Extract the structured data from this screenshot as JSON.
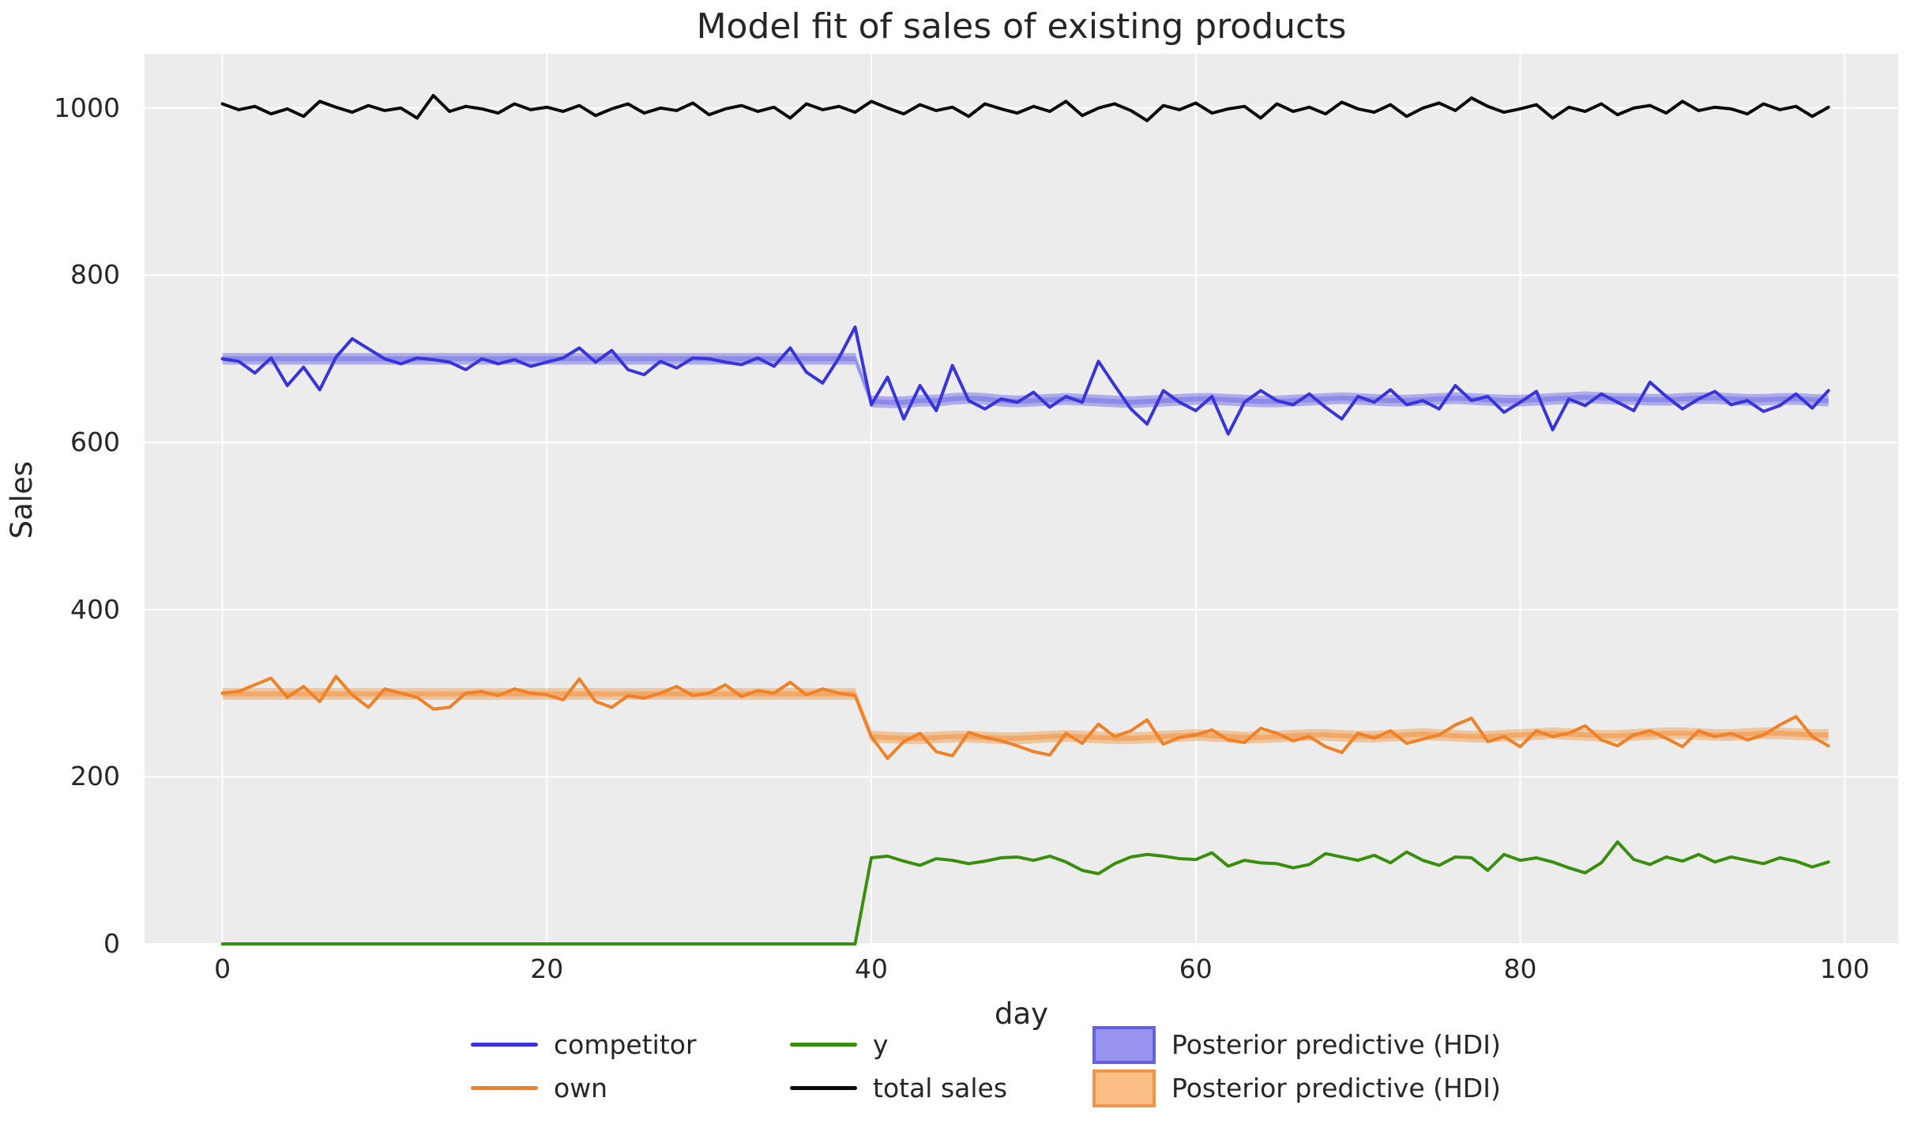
{
  "chart_data": {
    "type": "line",
    "title": "Model fit of sales of existing products",
    "xlabel": "day",
    "ylabel": "Sales",
    "xlim": [
      -4.8,
      103.3
    ],
    "ylim": [
      0,
      1065
    ],
    "xticks": [
      0,
      20,
      40,
      60,
      80,
      100
    ],
    "yticks": [
      0,
      200,
      400,
      600,
      800,
      1000
    ],
    "grid": true,
    "legend_position": "below",
    "axes_background": "#ececec",
    "grid_color": "#ffffff",
    "x": [
      0,
      1,
      2,
      3,
      4,
      5,
      6,
      7,
      8,
      9,
      10,
      11,
      12,
      13,
      14,
      15,
      16,
      17,
      18,
      19,
      20,
      21,
      22,
      23,
      24,
      25,
      26,
      27,
      28,
      29,
      30,
      31,
      32,
      33,
      34,
      35,
      36,
      37,
      38,
      39,
      40,
      41,
      42,
      43,
      44,
      45,
      46,
      47,
      48,
      49,
      50,
      51,
      52,
      53,
      54,
      55,
      56,
      57,
      58,
      59,
      60,
      61,
      62,
      63,
      64,
      65,
      66,
      67,
      68,
      69,
      70,
      71,
      72,
      73,
      74,
      75,
      76,
      77,
      78,
      79,
      80,
      81,
      82,
      83,
      84,
      85,
      86,
      87,
      88,
      89,
      90,
      91,
      92,
      93,
      94,
      95,
      96,
      97,
      98,
      99
    ],
    "series": [
      {
        "name": "competitor",
        "color": "#3734db",
        "values": [
          700,
          697,
          683,
          701,
          668,
          690,
          663,
          702,
          724,
          712,
          700,
          694,
          701,
          699,
          696,
          687,
          700,
          694,
          699,
          691,
          696,
          701,
          713,
          696,
          710,
          687,
          681,
          697,
          689,
          701,
          700,
          696,
          693,
          701,
          691,
          713,
          684,
          671,
          701,
          738,
          645,
          678,
          628,
          668,
          638,
          692,
          650,
          640,
          652,
          648,
          660,
          642,
          655,
          648,
          697,
          668,
          640,
          622,
          662,
          648,
          638,
          655,
          610,
          648,
          662,
          650,
          645,
          658,
          642,
          628,
          655,
          648,
          663,
          645,
          650,
          640,
          668,
          650,
          655,
          636,
          648,
          661,
          615,
          652,
          644,
          658,
          648,
          638,
          672,
          655,
          640,
          652,
          661,
          645,
          650,
          637,
          644,
          658,
          641,
          662
        ]
      },
      {
        "name": "own",
        "color": "#f08127",
        "values": [
          300,
          302,
          310,
          318,
          295,
          308,
          290,
          320,
          298,
          283,
          305,
          300,
          295,
          281,
          283,
          300,
          302,
          297,
          305,
          300,
          298,
          292,
          317,
          290,
          283,
          297,
          294,
          300,
          308,
          297,
          300,
          310,
          296,
          303,
          300,
          313,
          298,
          305,
          300,
          297,
          248,
          222,
          242,
          252,
          230,
          225,
          253,
          247,
          243,
          237,
          230,
          226,
          252,
          240,
          263,
          248,
          255,
          268,
          239,
          247,
          250,
          256,
          244,
          241,
          258,
          252,
          243,
          248,
          236,
          229,
          252,
          246,
          255,
          240,
          245,
          250,
          262,
          270,
          242,
          248,
          236,
          255,
          248,
          252,
          261,
          244,
          237,
          250,
          255,
          246,
          236,
          255,
          248,
          252,
          244,
          250,
          262,
          272,
          248,
          237
        ]
      },
      {
        "name": "y",
        "color": "#3a8e0e",
        "values": [
          0,
          0,
          0,
          0,
          0,
          0,
          0,
          0,
          0,
          0,
          0,
          0,
          0,
          0,
          0,
          0,
          0,
          0,
          0,
          0,
          0,
          0,
          0,
          0,
          0,
          0,
          0,
          0,
          0,
          0,
          0,
          0,
          0,
          0,
          0,
          0,
          0,
          0,
          0,
          0,
          103,
          105,
          99,
          94,
          102,
          100,
          96,
          99,
          103,
          104,
          100,
          105,
          98,
          88,
          84,
          96,
          104,
          107,
          105,
          102,
          101,
          109,
          93,
          100,
          97,
          96,
          91,
          95,
          108,
          104,
          100,
          106,
          97,
          110,
          100,
          94,
          104,
          103,
          88,
          107,
          100,
          103,
          98,
          91,
          85,
          97,
          122,
          101,
          95,
          104,
          99,
          107,
          98,
          104,
          100,
          96,
          103,
          99,
          92,
          98
        ]
      },
      {
        "name": "total sales",
        "color": "#0a0a0a",
        "values": [
          1005,
          998,
          1002,
          993,
          999,
          990,
          1008,
          1001,
          995,
          1003,
          997,
          1000,
          988,
          1015,
          996,
          1002,
          999,
          994,
          1005,
          998,
          1001,
          996,
          1003,
          991,
          999,
          1005,
          994,
          1000,
          997,
          1006,
          992,
          999,
          1003,
          996,
          1001,
          988,
          1005,
          998,
          1002,
          995,
          1008,
          1000,
          993,
          1004,
          997,
          1001,
          990,
          1005,
          999,
          994,
          1002,
          996,
          1008,
          991,
          1000,
          1005,
          997,
          985,
          1003,
          998,
          1006,
          994,
          999,
          1002,
          988,
          1005,
          996,
          1001,
          993,
          1007,
          999,
          995,
          1004,
          990,
          1000,
          1006,
          997,
          1012,
          1002,
          995,
          999,
          1004,
          988,
          1001,
          996,
          1005,
          992,
          1000,
          1003,
          994,
          1008,
          997,
          1001,
          999,
          993,
          1005,
          998,
          1002,
          990,
          1001
        ]
      }
    ],
    "bands": [
      {
        "name": "Posterior predictive (HDI)",
        "series": "competitor",
        "fill": "rgba(87,83,230,0.42)",
        "core_fill": "rgba(87,83,230,0.38)",
        "hdi_halfwidth": 7,
        "core_halfwidth": 3,
        "mean": [
          700,
          700,
          700,
          700,
          700,
          700,
          700,
          700,
          700,
          700,
          700,
          700,
          700,
          700,
          700,
          700,
          700,
          700,
          700,
          700,
          700,
          700,
          700,
          700,
          700,
          700,
          700,
          700,
          700,
          700,
          700,
          700,
          700,
          700,
          700,
          700,
          700,
          700,
          700,
          700,
          649,
          648,
          648,
          650,
          650,
          652,
          653,
          652,
          650,
          649,
          650,
          651,
          652,
          651,
          650,
          649,
          648,
          649,
          650,
          651,
          652,
          652,
          651,
          650,
          649,
          649,
          650,
          651,
          652,
          653,
          652,
          651,
          650,
          650,
          651,
          652,
          653,
          652,
          651,
          650,
          650,
          651,
          652,
          653,
          654,
          653,
          652,
          652,
          651,
          651,
          652,
          653,
          653,
          652,
          651,
          651,
          652,
          652,
          651,
          650
        ]
      },
      {
        "name": "Posterior predictive (HDI)",
        "series": "own",
        "fill": "rgba(245,140,40,0.40)",
        "core_fill": "rgba(243,130,35,0.42)",
        "hdi_halfwidth": 7,
        "core_halfwidth": 3,
        "mean": [
          299,
          299,
          299,
          299,
          299,
          299,
          299,
          299,
          299,
          299,
          299,
          299,
          299,
          299,
          299,
          299,
          299,
          299,
          299,
          299,
          299,
          299,
          299,
          299,
          299,
          299,
          299,
          299,
          299,
          299,
          299,
          299,
          299,
          299,
          299,
          299,
          299,
          299,
          299,
          299,
          248,
          247,
          246,
          246,
          247,
          248,
          248,
          247,
          246,
          246,
          247,
          248,
          249,
          248,
          247,
          246,
          246,
          247,
          248,
          249,
          250,
          249,
          248,
          247,
          247,
          248,
          249,
          250,
          250,
          249,
          248,
          248,
          249,
          250,
          251,
          250,
          249,
          248,
          248,
          249,
          250,
          251,
          252,
          251,
          250,
          249,
          249,
          250,
          251,
          252,
          252,
          251,
          250,
          250,
          251,
          252,
          252,
          251,
          250,
          250
        ]
      }
    ]
  },
  "legend": {
    "columns": [
      {
        "items": [
          {
            "label": "competitor",
            "swatch": "line",
            "color": "#3734db"
          },
          {
            "label": "own",
            "swatch": "line",
            "color": "#f08127"
          }
        ]
      },
      {
        "items": [
          {
            "label": "y",
            "swatch": "line",
            "color": "#3a8e0e"
          },
          {
            "label": "total sales",
            "swatch": "line",
            "color": "#0a0a0a"
          }
        ]
      },
      {
        "items": [
          {
            "label": "Posterior predictive (HDI)",
            "swatch": "patch",
            "fill": "#9793ee",
            "border": "#6561e2"
          },
          {
            "label": "Posterior predictive (HDI)",
            "swatch": "patch",
            "fill": "#fbbf86",
            "border": "#f29447"
          }
        ]
      }
    ]
  }
}
